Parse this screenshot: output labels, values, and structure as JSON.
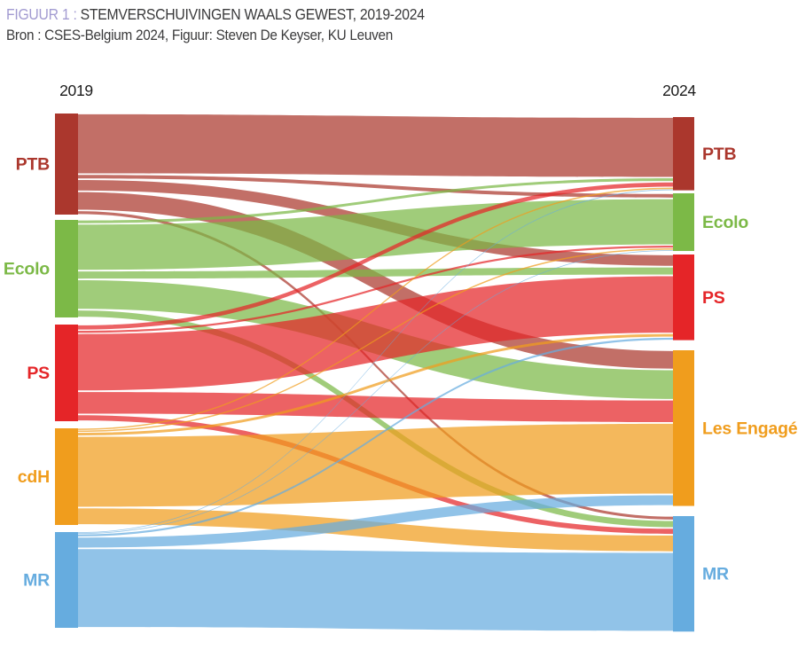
{
  "figure": {
    "label": "FIGUUR 1 :",
    "title": "STEMVERSCHUIVINGEN WAALS GEWEST, 2019-2024",
    "source": "Bron : CSES-Belgium 2024, Figuur: Steven De Keyser, KU Leuven"
  },
  "chart_data": {
    "type": "sankey",
    "left_axis_label": "2019",
    "right_axis_label": "2024",
    "unit": "percent of each party's 2019 voters (estimated from band widths)",
    "legend_position": "node labels on both sides",
    "parties_2019": [
      {
        "label": "PTB",
        "color": "#ab372d"
      },
      {
        "label": "Ecolo",
        "color": "#7cb947"
      },
      {
        "label": "PS",
        "color": "#e52528"
      },
      {
        "label": "cdH",
        "color": "#f09d1d"
      },
      {
        "label": "MR",
        "color": "#66acdf"
      }
    ],
    "parties_2024": [
      {
        "label": "PTB",
        "color": "#ab372d"
      },
      {
        "label": "Ecolo",
        "color": "#7cb947"
      },
      {
        "label": "PS",
        "color": "#e52528"
      },
      {
        "label": "Les Engagés",
        "color": "#f09d1d"
      },
      {
        "label": "MR",
        "color": "#66acdf"
      }
    ],
    "flows": [
      {
        "from": "PTB",
        "to": "PTB",
        "value": 60
      },
      {
        "from": "PTB",
        "to": "Ecolo",
        "value": 5
      },
      {
        "from": "PTB",
        "to": "PS",
        "value": 12
      },
      {
        "from": "PTB",
        "to": "Les Engagés",
        "value": 19
      },
      {
        "from": "PTB",
        "to": "MR",
        "value": 4
      },
      {
        "from": "Ecolo",
        "to": "PTB",
        "value": 4
      },
      {
        "from": "Ecolo",
        "to": "Ecolo",
        "value": 48
      },
      {
        "from": "Ecolo",
        "to": "PS",
        "value": 9
      },
      {
        "from": "Ecolo",
        "to": "Les Engagés",
        "value": 31
      },
      {
        "from": "Ecolo",
        "to": "MR",
        "value": 8
      },
      {
        "from": "PS",
        "to": "PTB",
        "value": 6
      },
      {
        "from": "PS",
        "to": "Ecolo",
        "value": 3
      },
      {
        "from": "PS",
        "to": "PS",
        "value": 60
      },
      {
        "from": "PS",
        "to": "Les Engagés",
        "value": 24
      },
      {
        "from": "PS",
        "to": "MR",
        "value": 7
      },
      {
        "from": "cdH",
        "to": "PTB",
        "value": 2
      },
      {
        "from": "cdH",
        "to": "Ecolo",
        "value": 2
      },
      {
        "from": "cdH",
        "to": "PS",
        "value": 4
      },
      {
        "from": "cdH",
        "to": "Les Engagés",
        "value": 74
      },
      {
        "from": "cdH",
        "to": "MR",
        "value": 18
      },
      {
        "from": "MR",
        "to": "PTB",
        "value": 1
      },
      {
        "from": "MR",
        "to": "Ecolo",
        "value": 1
      },
      {
        "from": "MR",
        "to": "PS",
        "value": 3
      },
      {
        "from": "MR",
        "to": "Les Engagés",
        "value": 12
      },
      {
        "from": "MR",
        "to": "MR",
        "value": 83
      }
    ],
    "flow_opacity": 0.72,
    "colors": {
      "title_accent": "#a29bd1",
      "title_text": "#3a3a3b",
      "background": "#ffffff"
    }
  }
}
